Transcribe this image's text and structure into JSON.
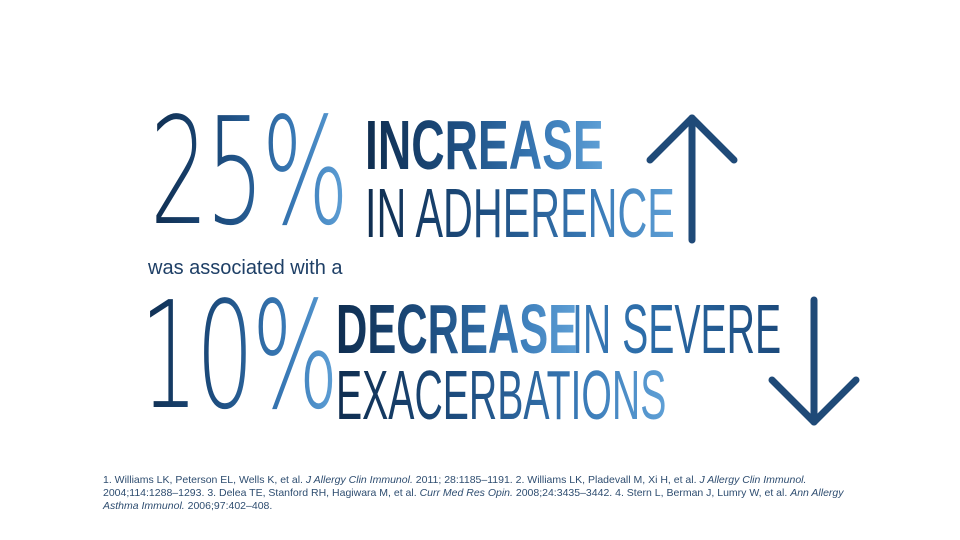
{
  "slide": {
    "stat1": {
      "percent": "25%",
      "headline": "INCREASE",
      "subline": "IN ADHERENCE",
      "direction": "up"
    },
    "connector": "was associated with a",
    "stat2": {
      "percent": "10%",
      "headline": "DECREASE",
      "headline_rest": "IN SEVERE",
      "subline": "EXACERBATIONS",
      "direction": "down"
    },
    "references": [
      {
        "text": "1. Williams LK, Peterson EL, Wells K, et al. "
      },
      {
        "text": "J Allergy Clin Immunol.",
        "italic": true
      },
      {
        "text": " 2011; 28:1185–1191. 2. Williams LK, Pladevall M, Xi H, et al. "
      },
      {
        "text": "J Allergy Clin Immunol.",
        "italic": true
      },
      {
        "text": " 2004;114:1288–1293. 3. Delea TE, Stanford RH, Hagiwara M, et al. "
      },
      {
        "text": "Curr Med Res Opin.",
        "italic": true
      },
      {
        "text": " 2008;24:3435–3442. 4. Stern L, Berman J, Lumry W, et al. "
      },
      {
        "text": "Ann Allergy Asthma Immunol.",
        "italic": true
      },
      {
        "text": " 2006;97:402–408."
      }
    ],
    "colors": {
      "dark_navy": "#0f2d4f",
      "mid_blue": "#1e4f82",
      "light_blue": "#5fa0d6",
      "arrow": "#1f4a78"
    }
  }
}
